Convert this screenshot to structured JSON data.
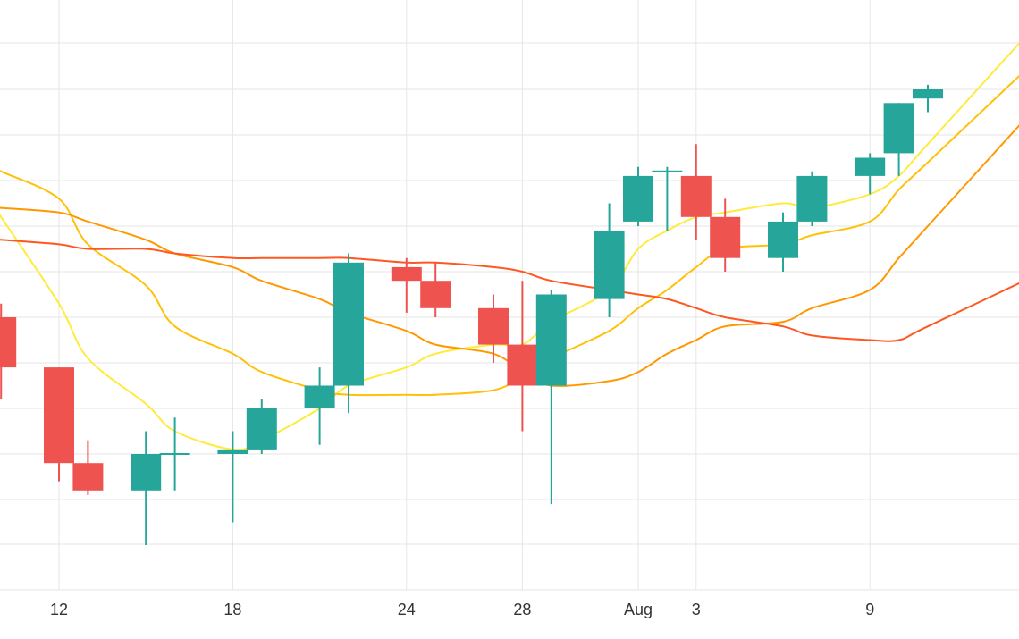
{
  "chart_data": {
    "type": "candlestick",
    "x_ticks": [
      "12",
      "18",
      "24",
      "28",
      "Aug",
      "3",
      "9"
    ],
    "grid": true,
    "colors": {
      "up": "#26a69a",
      "down": "#ef5350",
      "background": "#ffffff",
      "grid": "#e6e6e6"
    },
    "candles": [
      {
        "date": "Jul 10",
        "open": 100.0,
        "high": 100.3,
        "low": 98.2,
        "close": 98.9
      },
      {
        "date": "Jul 12",
        "open": 98.9,
        "high": 98.9,
        "low": 96.4,
        "close": 96.8
      },
      {
        "date": "Jul 13",
        "open": 96.8,
        "high": 97.3,
        "low": 96.1,
        "close": 96.2
      },
      {
        "date": "Jul 15",
        "open": 96.2,
        "high": 97.5,
        "low": 95.0,
        "close": 97.0
      },
      {
        "date": "Jul 16",
        "open": 97.0,
        "high": 97.8,
        "low": 96.2,
        "close": 97.0
      },
      {
        "date": "Jul 18",
        "open": 97.0,
        "high": 97.5,
        "low": 95.5,
        "close": 97.1
      },
      {
        "date": "Jul 19",
        "open": 97.1,
        "high": 98.2,
        "low": 97.0,
        "close": 98.0
      },
      {
        "date": "Jul 21",
        "open": 98.0,
        "high": 98.9,
        "low": 97.2,
        "close": 98.5
      },
      {
        "date": "Jul 22",
        "open": 98.5,
        "high": 101.4,
        "low": 97.9,
        "close": 101.2
      },
      {
        "date": "Jul 24",
        "open": 101.1,
        "high": 101.3,
        "low": 100.1,
        "close": 100.8
      },
      {
        "date": "Jul 25",
        "open": 100.8,
        "high": 101.2,
        "low": 100.0,
        "close": 100.2
      },
      {
        "date": "Jul 27",
        "open": 100.2,
        "high": 100.5,
        "low": 99.0,
        "close": 99.4
      },
      {
        "date": "Jul 28",
        "open": 99.4,
        "high": 100.8,
        "low": 97.5,
        "close": 98.5
      },
      {
        "date": "Jul 29",
        "open": 98.5,
        "high": 100.6,
        "low": 95.9,
        "close": 100.5
      },
      {
        "date": "Jul 31",
        "open": 100.4,
        "high": 102.5,
        "low": 100.0,
        "close": 101.9
      },
      {
        "date": "Aug 1",
        "open": 102.1,
        "high": 103.3,
        "low": 102.0,
        "close": 103.1
      },
      {
        "date": "Aug 2",
        "open": 103.2,
        "high": 103.3,
        "low": 101.9,
        "close": 103.2
      },
      {
        "date": "Aug 3",
        "open": 103.1,
        "high": 103.8,
        "low": 101.7,
        "close": 102.2
      },
      {
        "date": "Aug 4",
        "open": 102.2,
        "high": 102.6,
        "low": 101.0,
        "close": 101.3
      },
      {
        "date": "Aug 6",
        "open": 101.3,
        "high": 102.3,
        "low": 101.0,
        "close": 102.1
      },
      {
        "date": "Aug 7",
        "open": 102.1,
        "high": 103.2,
        "low": 102.0,
        "close": 103.1
      },
      {
        "date": "Aug 9",
        "open": 103.1,
        "high": 103.6,
        "low": 102.7,
        "close": 103.5
      },
      {
        "date": "Aug 10",
        "open": 103.6,
        "high": 104.7,
        "low": 103.1,
        "close": 104.7
      },
      {
        "date": "Aug 11",
        "open": 104.8,
        "high": 105.1,
        "low": 104.5,
        "close": 105.0
      }
    ],
    "series": [
      {
        "color": "#ffeb3b",
        "values": [
          102.2,
          100.3,
          99.1,
          98.1,
          97.5,
          97.1,
          97.3,
          98.0,
          98.5,
          98.9,
          99.2,
          99.4,
          99.4,
          99.9,
          100.6,
          101.5,
          101.9,
          102.2,
          102.3,
          102.5,
          102.4,
          102.7,
          103.1,
          103.8
        ]
      },
      {
        "color": "#ffc107",
        "values": [
          103.2,
          102.6,
          101.6,
          100.7,
          99.8,
          99.2,
          98.8,
          98.4,
          98.3,
          98.3,
          98.3,
          98.4,
          98.7,
          99.1,
          99.7,
          100.2,
          100.6,
          101.1,
          101.5,
          101.6,
          101.8,
          102.1,
          102.8,
          103.4
        ]
      },
      {
        "color": "#ff9800",
        "values": [
          102.4,
          102.3,
          102.1,
          101.7,
          101.4,
          101.1,
          100.8,
          100.4,
          100.1,
          99.7,
          99.4,
          99.2,
          98.8,
          98.5,
          98.6,
          98.8,
          99.2,
          99.5,
          99.8,
          99.9,
          100.2,
          100.6,
          101.3,
          102.0
        ]
      },
      {
        "color": "#ff5722",
        "values": [
          101.7,
          101.6,
          101.5,
          101.5,
          101.4,
          101.3,
          101.3,
          101.3,
          101.3,
          101.2,
          101.2,
          101.1,
          101.0,
          100.8,
          100.6,
          100.5,
          100.4,
          100.2,
          100.0,
          99.8,
          99.6,
          99.5,
          99.5,
          99.8
        ]
      }
    ]
  }
}
